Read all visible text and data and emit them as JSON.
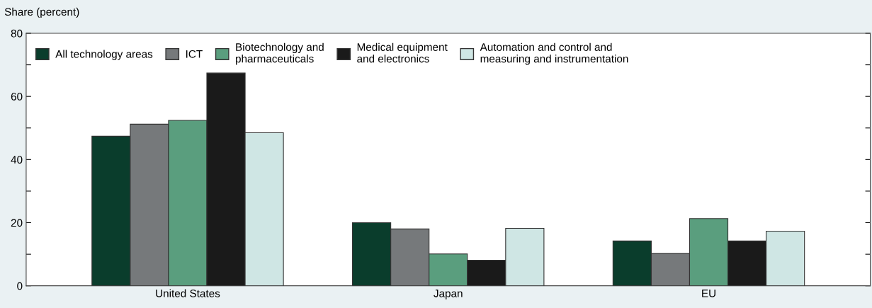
{
  "chart_data": {
    "type": "bar",
    "ylabel": "Share (percent)",
    "categories": [
      "United States",
      "Japan",
      "EU"
    ],
    "series": [
      {
        "name": "All technology areas",
        "color": "#0a3d2c",
        "values": [
          47.4,
          20.0,
          14.2
        ]
      },
      {
        "name": "ICT",
        "color": "#76797b",
        "values": [
          51.2,
          18.0,
          10.3
        ]
      },
      {
        "name": "Biotechnology and\npharmaceuticals",
        "color": "#5a9e7e",
        "values": [
          52.4,
          10.1,
          21.3
        ]
      },
      {
        "name": "Medical equipment\nand electronics",
        "color": "#1a1a1a",
        "values": [
          67.4,
          8.1,
          14.2
        ]
      },
      {
        "name": "Automation and control and\nmeasuring and instrumentation",
        "color": "#cfe6e4",
        "values": [
          48.5,
          18.2,
          17.3
        ]
      }
    ],
    "ylim": [
      0,
      80
    ],
    "yticks": [
      0,
      {
        "value": 10,
        "label": null
      },
      20,
      {
        "value": 30,
        "label": null
      },
      40,
      {
        "value": 50,
        "label": null
      },
      60,
      {
        "value": 70,
        "label": null
      },
      80
    ],
    "grid": false,
    "legend": "top left"
  }
}
